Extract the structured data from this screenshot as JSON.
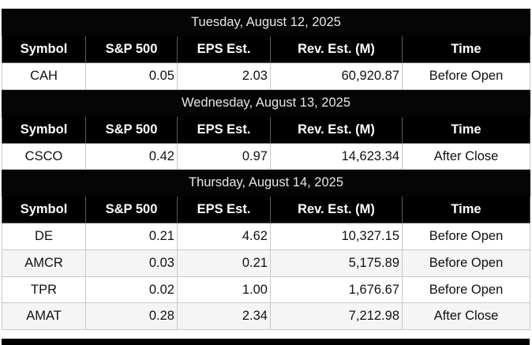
{
  "columns": [
    "Symbol",
    "S&P 500",
    "EPS Est.",
    "Rev. Est. (M)",
    "Time"
  ],
  "days": [
    {
      "date": "Tuesday, August 12, 2025",
      "rows": [
        {
          "symbol": "CAH",
          "sp500": "0.05",
          "eps": "2.03",
          "rev": "60,920.87",
          "time": "Before Open"
        }
      ]
    },
    {
      "date": "Wednesday, August 13, 2025",
      "rows": [
        {
          "symbol": "CSCO",
          "sp500": "0.42",
          "eps": "0.97",
          "rev": "14,623.34",
          "time": "After Close"
        }
      ]
    },
    {
      "date": "Thursday, August 14, 2025",
      "rows": [
        {
          "symbol": "DE",
          "sp500": "0.21",
          "eps": "4.62",
          "rev": "10,327.15",
          "time": "Before Open"
        },
        {
          "symbol": "AMCR",
          "sp500": "0.03",
          "eps": "0.21",
          "rev": "5,175.89",
          "time": "Before Open"
        },
        {
          "symbol": "TPR",
          "sp500": "0.02",
          "eps": "1.00",
          "rev": "1,676.67",
          "time": "Before Open"
        },
        {
          "symbol": "AMAT",
          "sp500": "0.28",
          "eps": "2.34",
          "rev": "7,212.98",
          "time": "After Close"
        }
      ]
    }
  ]
}
